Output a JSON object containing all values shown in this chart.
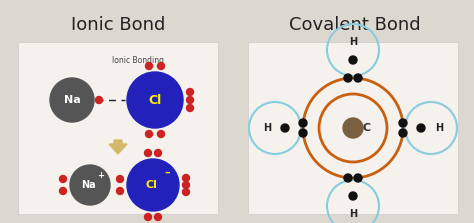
{
  "bg_color": "#ddd8cf",
  "panel_color": "#f5f2ee",
  "title_ionic": "Ionic Bond",
  "title_covalent": "Covalent Bond",
  "title_fontsize": 13,
  "ionic_bonding_label": "Ionic Bonding",
  "na_color": "#555555",
  "cl_color": "#2222bb",
  "label_color_na": "white",
  "label_color_cl": "#ffee00",
  "electron_color": "#cc2222",
  "arrow_color": "#d4b86a",
  "c_nucleus_color": "#7a6040",
  "c_ring_color": "#c86010",
  "h_ring_color": "#88ccdd",
  "bond_dot_color": "#111111",
  "panel_edge_color": "#cccccc"
}
